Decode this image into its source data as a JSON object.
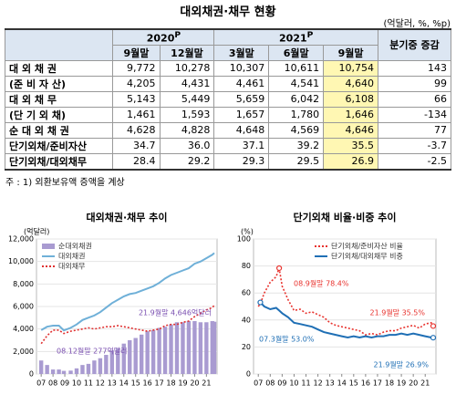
{
  "title": "대외채권·채무 현황",
  "unit": "(억달러, %, %p)",
  "table": {
    "groups": [
      {
        "year": "2020",
        "mark": "P"
      },
      {
        "year": "2021",
        "mark": "P"
      }
    ],
    "change_header": "분기중 증감",
    "columns": [
      "9월말",
      "12월말",
      "3월말",
      "6월말",
      "9월말"
    ],
    "rows": [
      {
        "label": "대 외 채 권",
        "cells": [
          "9,772",
          "10,278",
          "10,307",
          "10,611",
          "10,754",
          "143"
        ]
      },
      {
        "label": "(준 비 자 산)",
        "cells": [
          "4,205",
          "4,431",
          "4,461",
          "4,541",
          "4,640",
          "99"
        ]
      },
      {
        "label": "대 외 채 무",
        "cells": [
          "5,143",
          "5,449",
          "5,659",
          "6,042",
          "6,108",
          "66"
        ]
      },
      {
        "label": "(단 기 외 채)",
        "cells": [
          "1,461",
          "1,593",
          "1,657",
          "1,780",
          "1,646",
          "-134"
        ]
      },
      {
        "label": "순 대 외 채 권",
        "cells": [
          "4,628",
          "4,828",
          "4,648",
          "4,569",
          "4,646",
          "77"
        ]
      },
      {
        "label": "단기외채/준비자산",
        "cells": [
          "34.7",
          "36.0",
          "37.1",
          "39.2",
          "35.5",
          "-3.7"
        ]
      },
      {
        "label": "단기외채/대외채무",
        "cells": [
          "28.4",
          "29.2",
          "29.3",
          "29.5",
          "26.9",
          "-2.5"
        ]
      }
    ]
  },
  "note": "주 : 1) 외환보유액 증액을 계상",
  "chart_data": [
    {
      "type": "line",
      "title": "대외채권·채무 추이",
      "y_label": "(억달러)",
      "x": [
        2007,
        2007.5,
        2008,
        2008.5,
        2008.92,
        2009.5,
        2010,
        2010.5,
        2011,
        2011.5,
        2012,
        2012.5,
        2013,
        2013.5,
        2014,
        2014.5,
        2015,
        2015.5,
        2016,
        2016.5,
        2017,
        2017.5,
        2018,
        2018.5,
        2019,
        2019.5,
        2020,
        2020.5,
        2021,
        2021.5,
        2021.67
      ],
      "xlim": [
        2006.6,
        2021.9
      ],
      "xticks": [
        {
          "value": 2007,
          "label": "07"
        },
        {
          "value": 2008,
          "label": "08"
        },
        {
          "value": 2009,
          "label": "09"
        },
        {
          "value": 2010,
          "label": "10"
        },
        {
          "value": 2011,
          "label": "11"
        },
        {
          "value": 2012,
          "label": "12"
        },
        {
          "value": 2013,
          "label": "13"
        },
        {
          "value": 2014,
          "label": "14"
        },
        {
          "value": 2015,
          "label": "15"
        },
        {
          "value": 2016,
          "label": "16"
        },
        {
          "value": 2017,
          "label": "17"
        },
        {
          "value": 2018,
          "label": "18"
        },
        {
          "value": 2019,
          "label": "19"
        },
        {
          "value": 2020,
          "label": "20"
        },
        {
          "value": 2021,
          "label": "21"
        }
      ],
      "ylim": [
        0,
        12000
      ],
      "yticks": [
        0,
        {
          "value": 2000,
          "label": "2,000"
        },
        {
          "value": 4000,
          "label": "4,000"
        },
        {
          "value": 6000,
          "label": "6,000"
        },
        {
          "value": 8000,
          "label": "8,000"
        },
        {
          "value": 10000,
          "label": "10,000"
        },
        {
          "value": 12000,
          "label": "12,000"
        }
      ],
      "series": [
        {
          "name": "순대외채권",
          "color": "#a99bd1",
          "style": "bar",
          "values": [
            1200,
            800,
            400,
            400,
            277,
            300,
            500,
            800,
            900,
            1200,
            1400,
            1700,
            2100,
            2300,
            2700,
            3000,
            3200,
            3500,
            3800,
            3900,
            4100,
            4200,
            4400,
            4600,
            4600,
            4700,
            4700,
            4600,
            4600,
            4700,
            4646
          ]
        },
        {
          "name": "대외채권",
          "color": "#6fb0d8",
          "style": "line",
          "values": [
            3900,
            4200,
            4300,
            4300,
            3877,
            4100,
            4400,
            4800,
            5000,
            5200,
            5500,
            5900,
            6300,
            6600,
            6900,
            7100,
            7200,
            7400,
            7600,
            7800,
            8100,
            8500,
            8800,
            9000,
            9200,
            9400,
            9800,
            10000,
            10300,
            10600,
            10754
          ]
        },
        {
          "name": "대외채무",
          "color": "#e03030",
          "style": "dotted",
          "values": [
            2700,
            3400,
            3900,
            3900,
            3600,
            3800,
            3900,
            4000,
            4100,
            4000,
            4100,
            4200,
            4200,
            4300,
            4200,
            4100,
            4000,
            3900,
            3800,
            3900,
            4000,
            4300,
            4400,
            4400,
            4600,
            4700,
            5100,
            5400,
            5700,
            5900,
            6108
          ]
        }
      ],
      "annotations": [
        "21.9월말 4,646억달러",
        "08.12월말 277억달러"
      ]
    },
    {
      "type": "line",
      "title": "단기외채 비율·비중 추이",
      "y_label": "(%)",
      "x": [
        2007,
        2007.17,
        2007.5,
        2008,
        2008.5,
        2008.75,
        2009,
        2009.5,
        2010,
        2010.5,
        2011,
        2011.5,
        2012,
        2012.5,
        2013,
        2013.5,
        2014,
        2014.5,
        2015,
        2015.5,
        2016,
        2016.5,
        2017,
        2017.5,
        2018,
        2018.5,
        2019,
        2019.5,
        2020,
        2020.5,
        2021,
        2021.5,
        2021.67
      ],
      "xlim": [
        2006.6,
        2021.9
      ],
      "xticks": [
        {
          "value": 2007,
          "label": "07"
        },
        {
          "value": 2008,
          "label": "08"
        },
        {
          "value": 2009,
          "label": "09"
        },
        {
          "value": 2010,
          "label": "10"
        },
        {
          "value": 2011,
          "label": "11"
        },
        {
          "value": 2012,
          "label": "12"
        },
        {
          "value": 2013,
          "label": "13"
        },
        {
          "value": 2014,
          "label": "14"
        },
        {
          "value": 2015,
          "label": "15"
        },
        {
          "value": 2016,
          "label": "16"
        },
        {
          "value": 2017,
          "label": "17"
        },
        {
          "value": 2018,
          "label": "18"
        },
        {
          "value": 2019,
          "label": "19"
        },
        {
          "value": 2020,
          "label": "20"
        },
        {
          "value": 2021,
          "label": "21"
        }
      ],
      "ylim": [
        0,
        100
      ],
      "yticks": [
        0,
        20,
        40,
        60,
        80,
        100
      ],
      "series": [
        {
          "name": "단기외채/준비자산 비율",
          "color": "#e8332e",
          "style": "dotted",
          "values": [
            50,
            52,
            60,
            68,
            72,
            78.4,
            65,
            55,
            47,
            48,
            45,
            46,
            44,
            42,
            38,
            36,
            35,
            34,
            33,
            32,
            29,
            30,
            29,
            31,
            32,
            32,
            34,
            35,
            36,
            34,
            37,
            38,
            35.5
          ]
        },
        {
          "name": "단기외채/대외채무 비중",
          "color": "#1f6fb5",
          "style": "line",
          "values": [
            52,
            53.0,
            50,
            48,
            49,
            47,
            45,
            42,
            38,
            37,
            36,
            35,
            33,
            31,
            30,
            29,
            28,
            27,
            28,
            27,
            28,
            27,
            28,
            28,
            29,
            29,
            30,
            29,
            30,
            29,
            28,
            27,
            26.9
          ]
        }
      ],
      "annotations": [
        "08.9월말 78.4%",
        "21.9월말 35.5%",
        "07.3월말 53.0%",
        "21.9월말 26.9%"
      ]
    }
  ]
}
